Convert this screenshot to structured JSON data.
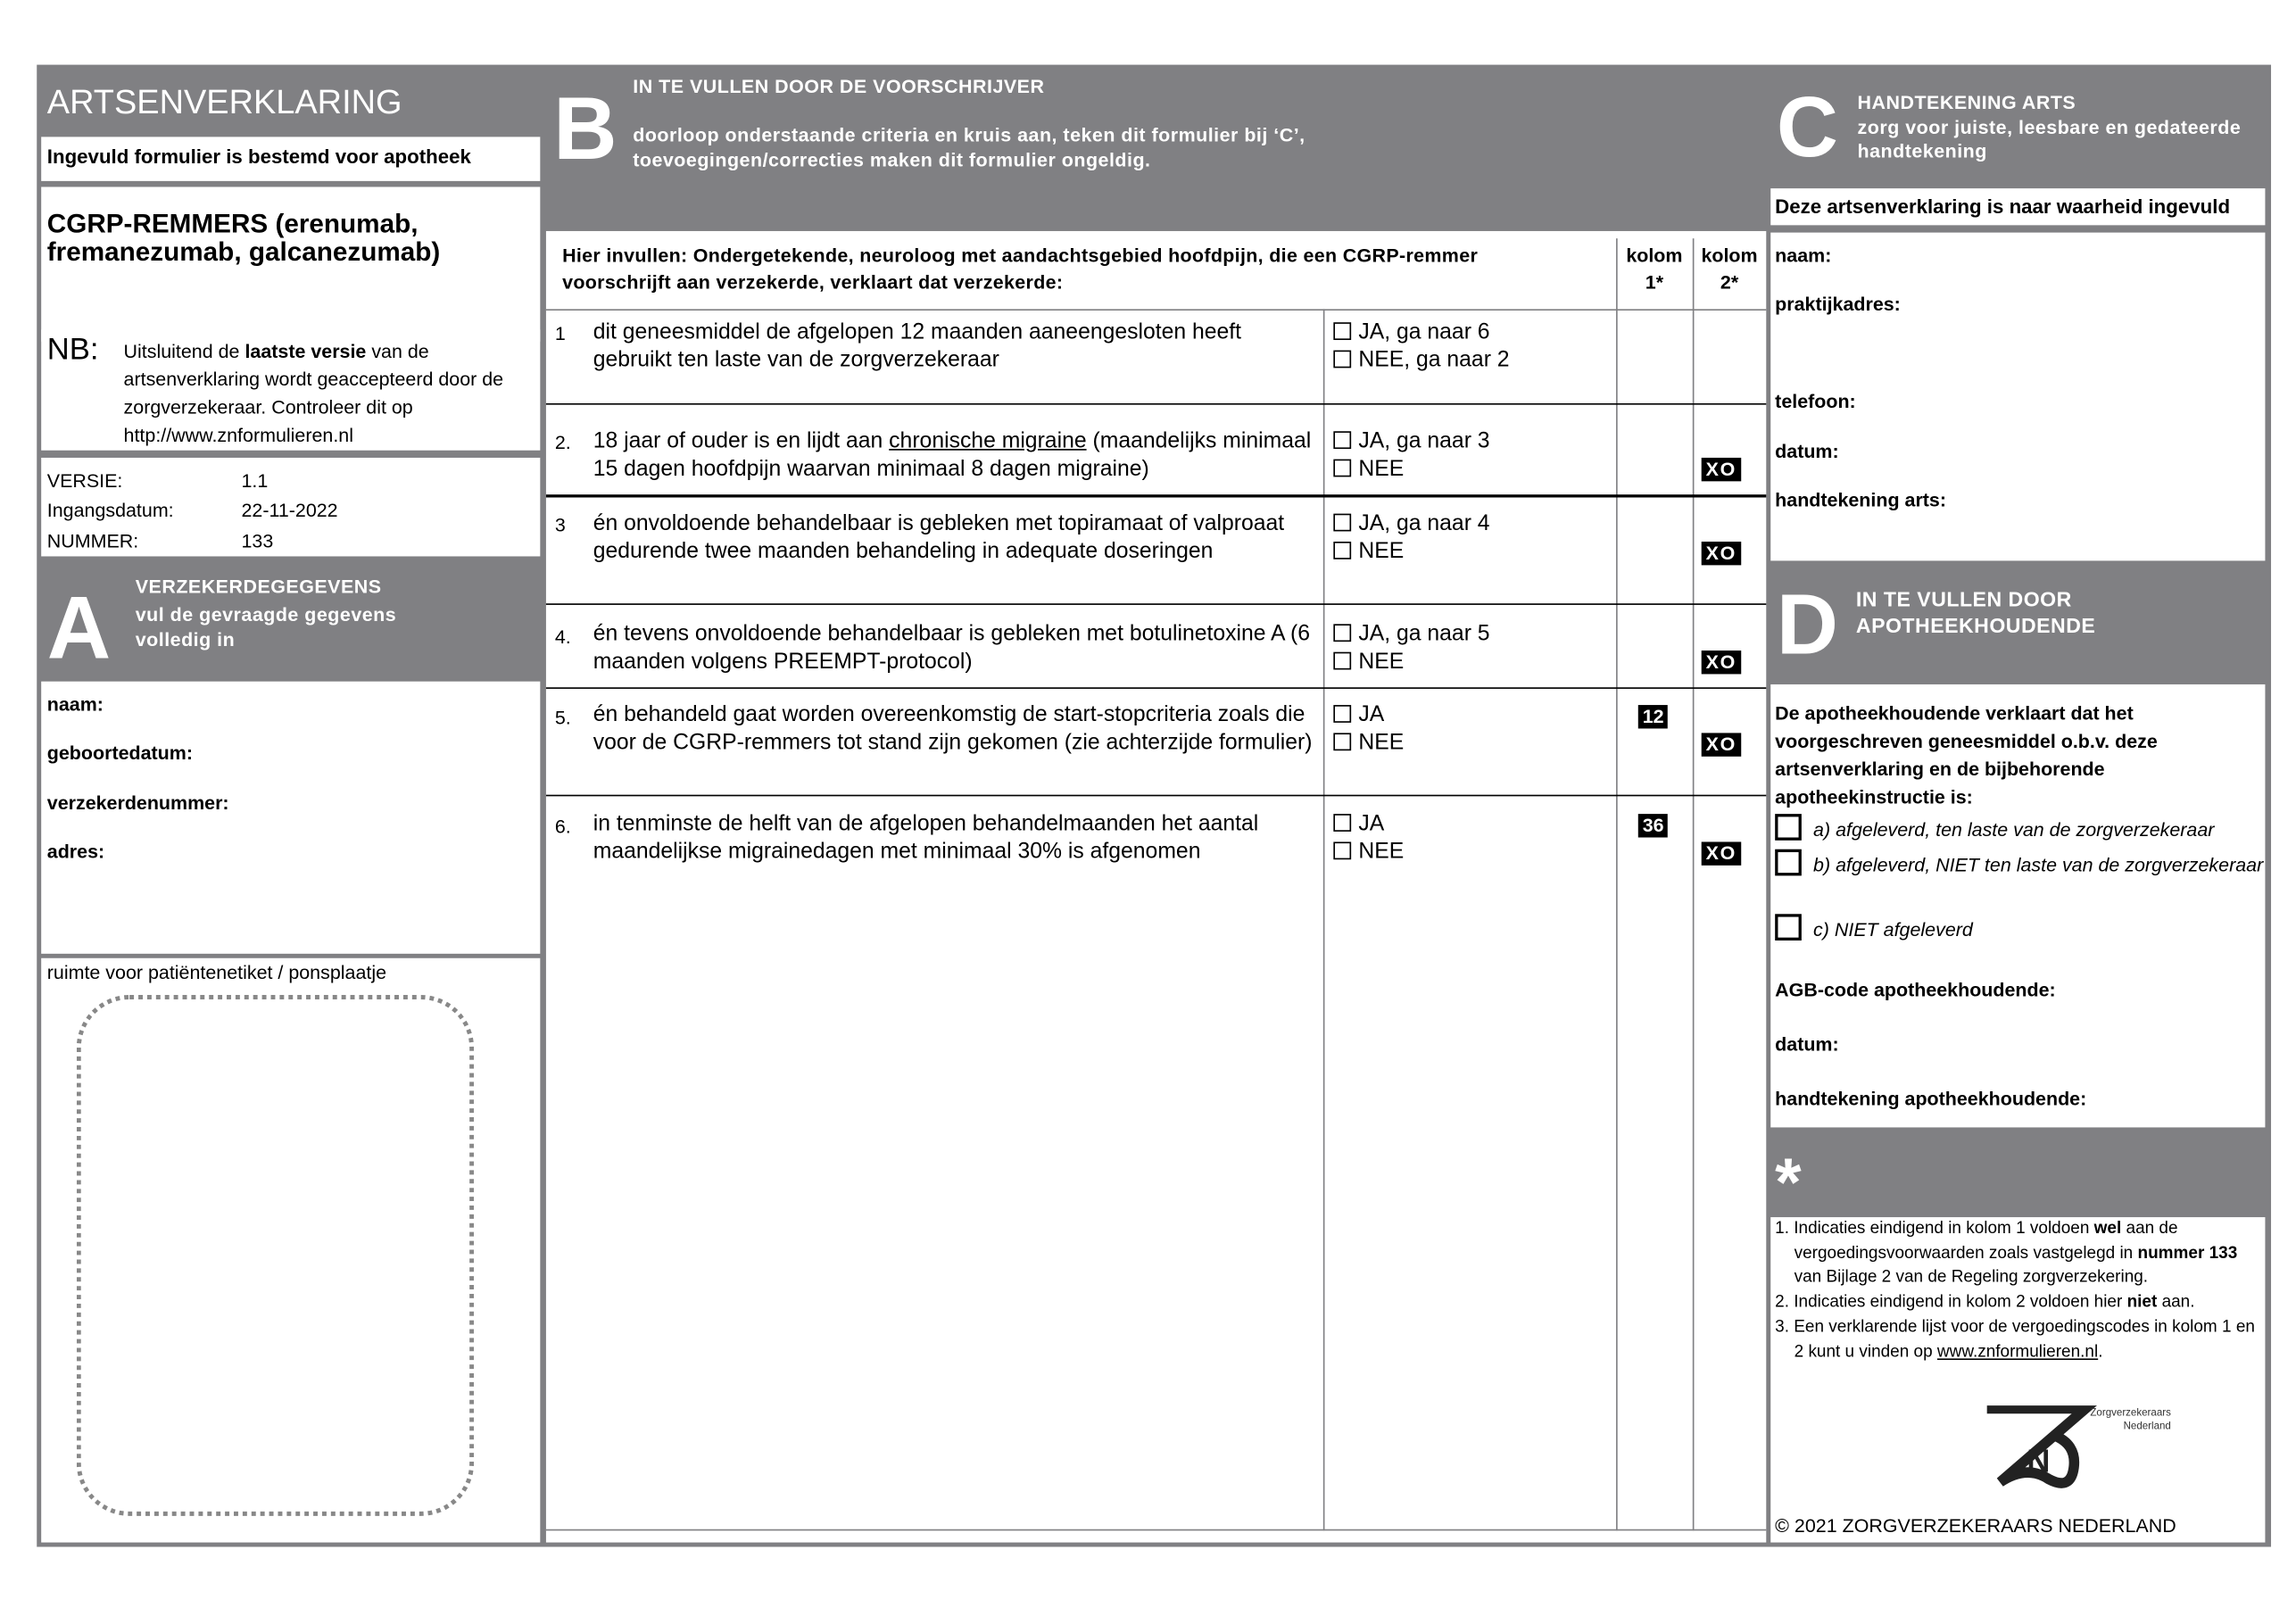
{
  "left": {
    "title": "ARTSENVERKLARING",
    "destined": "Ingevuld formulier is bestemd voor apotheek",
    "medicine_line1": "CGRP-REMMERS (erenumab,",
    "medicine_line2": "fremanezumab, galcanezumab)",
    "nb_label": "NB:",
    "nb_pre": "Uitsluitend de ",
    "nb_bold": "laatste versie",
    "nb_post": " van de artsenverklaring wordt geaccepteerd door de zorgverzekeraar. Controleer dit op http://www.znformulieren.nl",
    "version_label": "VERSIE:",
    "version": "1.1",
    "date_label": "Ingangsdatum:",
    "date": "22-11-2022",
    "number_label": "NUMMER:",
    "number": "133",
    "section_letter": "A",
    "section_title": "VERZEKERDEGEGEVENS",
    "section_sub": "vul de gevraagde gegevens volledig in",
    "fields": [
      "naam:",
      "geboortedatum:",
      "verzekerdenummer:",
      "adres:"
    ],
    "label_area": "ruimte voor patiëntenetiket / ponsplaatje"
  },
  "b": {
    "letter": "B",
    "title": "IN TE VULLEN DOOR DE VOORSCHRIJVER",
    "sub1": "doorloop onderstaande criteria en kruis aan, teken dit formulier bij ‘C’,",
    "sub2": "toevoegingen/correcties maken dit formulier ongeldig.",
    "intro": "Hier invullen: Ondergetekende, neuroloog met aandachtsgebied hoofdpijn, die een CGRP-remmer voorschrijft aan verzekerde, verklaart dat verzekerde:",
    "col1": "kolom 1*",
    "col2": "kolom 2*",
    "rows": [
      {
        "num": "1",
        "pre": "dit geneesmiddel de afgelopen 12 maanden aaneengesloten heeft gebruikt ten laste van de zorgverzekeraar",
        "opt1": "JA, ga naar 6",
        "opt2": "NEE, ga naar 2",
        "k1": "",
        "k2": ""
      },
      {
        "num": "2.",
        "pre": "18 jaar of ouder is  en lijdt aan ",
        "link": "chronische migraine",
        "post": " (maandelijks minimaal 15 dagen hoofdpijn waarvan minimaal 8 dagen migraine)",
        "opt1": "JA, ga naar 3",
        "opt2": "NEE",
        "k1": "",
        "k2": "XO"
      },
      {
        "num": "3",
        "pre": "én onvoldoende behandelbaar is gebleken met topiramaat of valproaat gedurende twee maanden behandeling in adequate doseringen",
        "opt1": "JA, ga naar 4",
        "opt2": "NEE",
        "k1": "",
        "k2": "XO"
      },
      {
        "num": "4.",
        "pre": "én tevens onvoldoende behandelbaar is gebleken met botulinetoxine A (6 maanden volgens PREEMPT-protocol)",
        "opt1": "JA, ga naar 5",
        "opt2": "NEE",
        "k1": "",
        "k2": "XO"
      },
      {
        "num": "5.",
        "pre": "én behandeld gaat worden overeenkomstig de start-stopcriteria zoals die voor de CGRP-remmers tot stand zijn gekomen (zie achterzijde formulier)",
        "opt1": "JA",
        "opt2": "NEE",
        "k1": "12",
        "k2": "XO"
      },
      {
        "num": "6.",
        "pre": "in tenminste de helft van de afgelopen behandelmaanden het aantal maandelijkse migrainedagen met minimaal 30% is afgenomen",
        "opt1": "JA",
        "opt2": "NEE",
        "k1": "36",
        "k2": "XO"
      }
    ]
  },
  "c": {
    "letter": "C",
    "title": "HANDTEKENING ARTS",
    "sub": "zorg voor juiste, leesbare en gedateerde handtekening",
    "truth": "Deze artsenverklaring is naar waarheid ingevuld",
    "fields": [
      "naam:",
      "praktijkadres:",
      "telefoon:",
      "datum:",
      "handtekening arts:"
    ]
  },
  "d": {
    "letter": "D",
    "title1": "IN TE VULLEN DOOR",
    "title2": "APOTHEEKHOUDENDE",
    "statement": "De apotheekhoudende verklaart dat het voorgeschreven geneesmiddel o.b.v. deze artsenverklaring en de bijbehorende apotheekinstructie is:",
    "options": [
      "a) afgeleverd, ten laste van de zorgverzekeraar",
      "b) afgeleverd, NIET ten laste van de zorgverzekeraar",
      "c) NIET afgeleverd"
    ],
    "fields": [
      "AGB-code apotheekhoudende:",
      "datum:",
      "handtekening apotheekhoudende:"
    ]
  },
  "notes": {
    "star": "*",
    "n1_pre": "1. Indicaties eindigend in kolom 1 voldoen ",
    "n1_b1": "wel",
    "n1_mid": " aan de vergoedingsvoorwaarden zoals vastgelegd in ",
    "n1_b2": "nummer 133",
    "n1_post": " van  Bijlage 2 van de Regeling zorgverzekering.",
    "n2_pre": "2. Indicaties eindigend in kolom 2 voldoen hier ",
    "n2_b": "niet",
    "n2_post": " aan.",
    "n3_pre": "3. Een verklarende lijst voor de vergoedingscodes in kolom 1 en 2 kunt u vinden op ",
    "n3_link": "www.znformulieren.nl",
    "n3_post": ".",
    "logo_text1": "Zorgverzekeraars",
    "logo_text2": "Nederland",
    "copyright": "© 2021 ZORGVERZEKERAARS NEDERLAND"
  },
  "colors": {
    "frame_gray": "#808083"
  }
}
